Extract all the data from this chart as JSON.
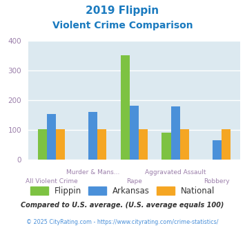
{
  "title_line1": "2019 Flippin",
  "title_line2": "Violent Crime Comparison",
  "title_color": "#1a7abf",
  "categories": [
    "All Violent Crime",
    "Murder & Mans...",
    "Rape",
    "Aggravated Assault",
    "Robbery"
  ],
  "series": {
    "Flippin": [
      103,
      null,
      352,
      90,
      null
    ],
    "Arkansas": [
      155,
      162,
      182,
      180,
      65
    ],
    "National": [
      102,
      103,
      103,
      103,
      103
    ]
  },
  "bar_colors": {
    "Flippin": "#7dc242",
    "Arkansas": "#4a90d9",
    "National": "#f5a623"
  },
  "ylim": [
    0,
    400
  ],
  "yticks": [
    0,
    100,
    200,
    300,
    400
  ],
  "bg_color": "#dce9f0",
  "grid_color": "#ffffff",
  "footnote1": "Compared to U.S. average. (U.S. average equals 100)",
  "footnote2": "© 2025 CityRating.com - https://www.cityrating.com/crime-statistics/",
  "footnote1_color": "#333333",
  "footnote2_color": "#4a90d9",
  "xlabel_color": "#9b7faa",
  "tick_color": "#9b7faa"
}
